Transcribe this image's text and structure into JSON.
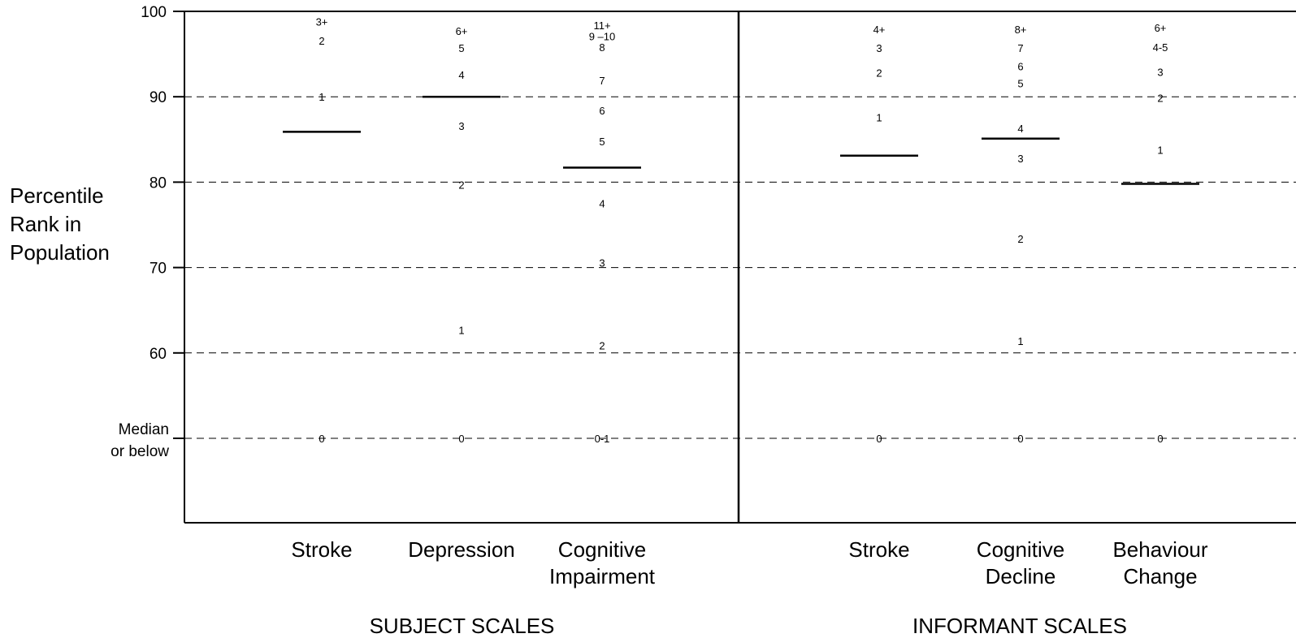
{
  "chart_data": {
    "type": "scatter",
    "ylabel": [
      "Percentile",
      "Rank in",
      "Population"
    ],
    "ylim": [
      40,
      100
    ],
    "y_ticks": [
      {
        "value": 100,
        "label": "100"
      },
      {
        "value": 90,
        "label": "90"
      },
      {
        "value": 80,
        "label": "80"
      },
      {
        "value": 70,
        "label": "70"
      },
      {
        "value": 60,
        "label": "60"
      }
    ],
    "median_label": [
      "Median",
      "or below"
    ],
    "median_value": 50,
    "grid": "dashed horizontal at 50, 60, 70, 80, 90",
    "groups": [
      {
        "label": "SUBJECT SCALES",
        "scales": [
          {
            "name": [
              "Stroke"
            ],
            "cutoff": 85.9,
            "scores": [
              {
                "label": "3+",
                "y": 98.8
              },
              {
                "label": "2",
                "y": 96.6
              },
              {
                "label": "1",
                "y": 90.0
              },
              {
                "label": "0",
                "y": 50.0
              }
            ]
          },
          {
            "name": [
              "Depression"
            ],
            "cutoff": 90.0,
            "scores": [
              {
                "label": "6+",
                "y": 97.7
              },
              {
                "label": "5",
                "y": 95.7
              },
              {
                "label": "4",
                "y": 92.6
              },
              {
                "label": "3",
                "y": 86.6
              },
              {
                "label": "2",
                "y": 79.7
              },
              {
                "label": "1",
                "y": 62.7
              },
              {
                "label": "0",
                "y": 50.0
              }
            ]
          },
          {
            "name": [
              "Cognitive",
              "Impairment"
            ],
            "cutoff": 81.7,
            "scores": [
              {
                "label": "11+",
                "y": 98.4
              },
              {
                "label": "9 –10",
                "y": 97.1
              },
              {
                "label": "8",
                "y": 95.8
              },
              {
                "label": "7",
                "y": 91.9
              },
              {
                "label": "6",
                "y": 88.4
              },
              {
                "label": "5",
                "y": 84.8
              },
              {
                "label": "4",
                "y": 77.5
              },
              {
                "label": "3",
                "y": 70.6
              },
              {
                "label": "2",
                "y": 60.9
              },
              {
                "label": "0-1",
                "y": 50.0
              }
            ]
          }
        ]
      },
      {
        "label": "INFORMANT SCALES",
        "scales": [
          {
            "name": [
              "Stroke"
            ],
            "cutoff": 83.1,
            "scores": [
              {
                "label": "4+",
                "y": 97.9
              },
              {
                "label": "3",
                "y": 95.7
              },
              {
                "label": "2",
                "y": 92.8
              },
              {
                "label": "1",
                "y": 87.6
              },
              {
                "label": "0",
                "y": 50.0
              }
            ]
          },
          {
            "name": [
              "Cognitive",
              "Decline"
            ],
            "cutoff": 85.1,
            "scores": [
              {
                "label": "8+",
                "y": 97.9
              },
              {
                "label": "7",
                "y": 95.7
              },
              {
                "label": "6",
                "y": 93.6
              },
              {
                "label": "5",
                "y": 91.6
              },
              {
                "label": "4",
                "y": 86.3
              },
              {
                "label": "3",
                "y": 82.8
              },
              {
                "label": "2",
                "y": 73.4
              },
              {
                "label": "1",
                "y": 61.4
              },
              {
                "label": "0",
                "y": 50.0
              }
            ]
          },
          {
            "name": [
              "Behaviour",
              "Change"
            ],
            "cutoff": 79.8,
            "scores": [
              {
                "label": "6+",
                "y": 98.1
              },
              {
                "label": "4-5",
                "y": 95.8
              },
              {
                "label": "3",
                "y": 92.9
              },
              {
                "label": "2",
                "y": 89.9
              },
              {
                "label": "1",
                "y": 83.8
              },
              {
                "label": "0",
                "y": 50.0
              }
            ]
          }
        ]
      }
    ]
  }
}
